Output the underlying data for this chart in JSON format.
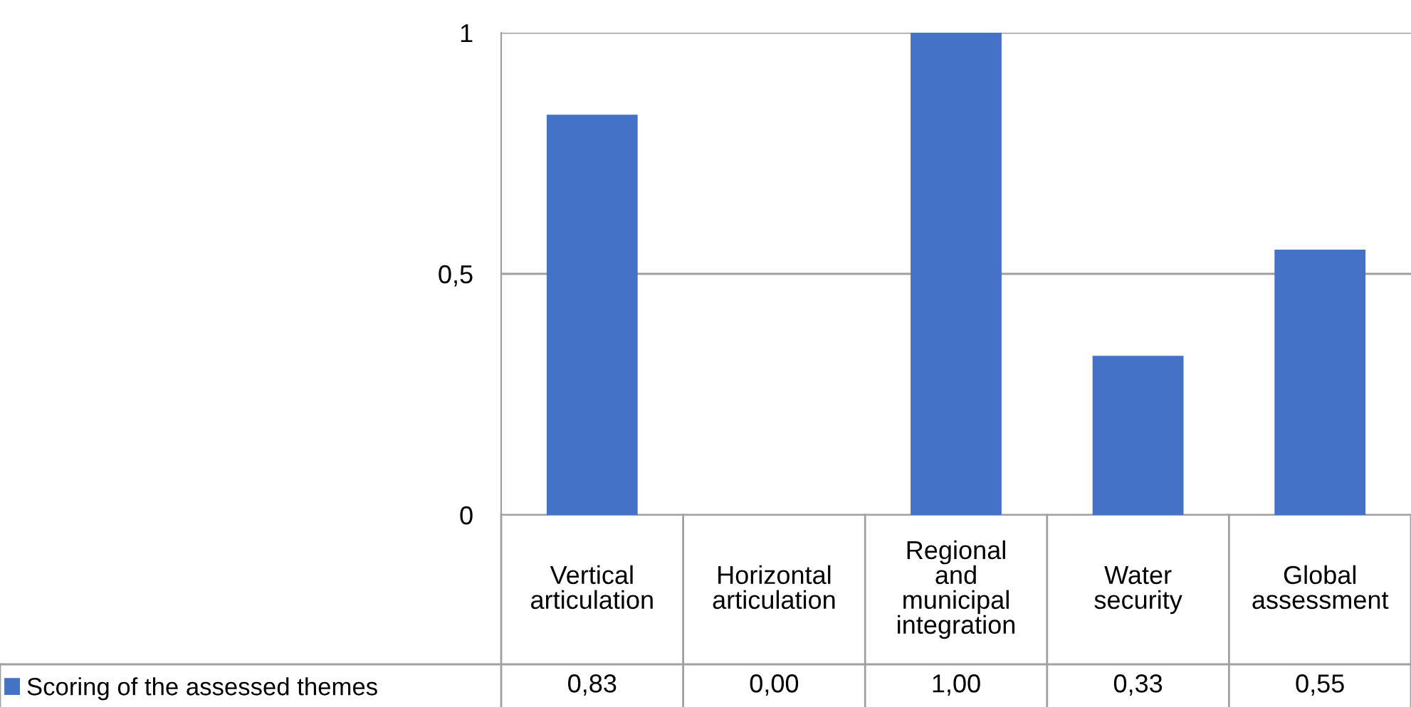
{
  "chart_data": {
    "type": "bar",
    "categories": [
      "Vertical articulation",
      "Horizontal articulation",
      "Regional and municipal integration",
      "Water security",
      "Global assessment"
    ],
    "series": [
      {
        "name": "Scoring of the assessed themes",
        "color": "#4472c4",
        "values": [
          0.83,
          0.0,
          1.0,
          0.33,
          0.55
        ],
        "value_labels": [
          "0,83",
          "0,00",
          "1,00",
          "0,33",
          "0,55"
        ]
      }
    ],
    "ylim": [
      0,
      1
    ],
    "yticks": [
      {
        "value": 0,
        "label": "0"
      },
      {
        "value": 0.5,
        "label": "0,5"
      },
      {
        "value": 1,
        "label": "1"
      }
    ],
    "grid": "y",
    "legend": "bottom left"
  }
}
